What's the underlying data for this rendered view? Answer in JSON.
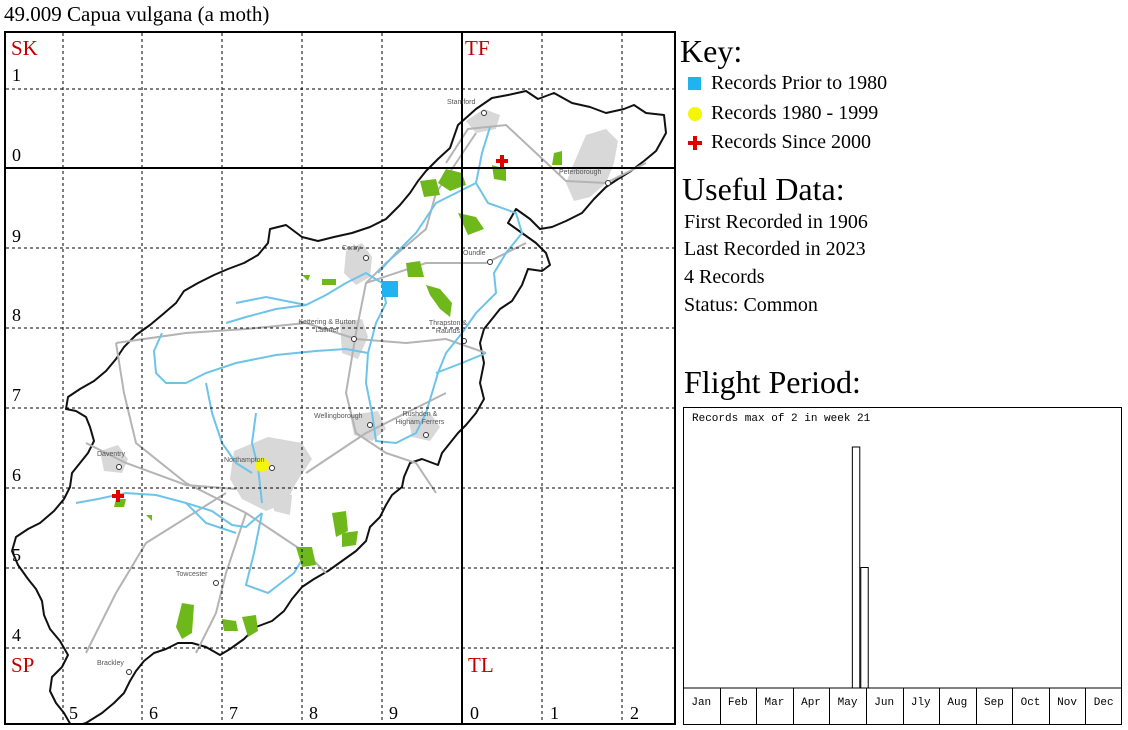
{
  "title": "49.009 Capua vulgana (a moth)",
  "map": {
    "grid_letters": {
      "top_left": "SK",
      "top_right": "TF",
      "bottom_left": "SP",
      "bottom_right": "TL"
    },
    "row_labels": [
      "1",
      "0",
      "9",
      "8",
      "7",
      "6",
      "5",
      "4"
    ],
    "column_labels": [
      "5",
      "6",
      "7",
      "8",
      "9",
      "0",
      "1",
      "2"
    ],
    "towns": [
      "Stamford",
      "Peterborough",
      "Corby",
      "Oundle",
      "Kettering & Burton Latimer",
      "Thrapston & Raunds",
      "Wellingborough",
      "Rushden & Higham Ferrers",
      "Daventry",
      "Northampton",
      "Towcester",
      "Brackley"
    ],
    "records": [
      {
        "type": "prior_1980",
        "color": "#1fb4f0"
      },
      {
        "type": "1980_1999",
        "color": "#f5f50a"
      },
      {
        "type": "since_2000",
        "color": "#e00000"
      },
      {
        "type": "since_2000",
        "color": "#e00000"
      }
    ]
  },
  "key": {
    "heading": "Key:",
    "items": [
      {
        "label": "Records Prior to 1980",
        "symbol": "square",
        "color": "#1fb4f0"
      },
      {
        "label": "Records 1980 - 1999",
        "symbol": "circle",
        "color": "#f5f50a"
      },
      {
        "label": "Records Since 2000",
        "symbol": "cross",
        "color": "#e00000"
      }
    ]
  },
  "useful_data": {
    "heading": "Useful Data:",
    "first_recorded": "First Recorded in 1906",
    "last_recorded": "Last Recorded in 2023",
    "records": "4 Records",
    "status": "Status: Common"
  },
  "flight_period": {
    "heading": "Flight Period:",
    "note": "Records max of 2 in week 21"
  },
  "chart_data": {
    "type": "bar",
    "x": [
      21,
      22
    ],
    "values": [
      2,
      1
    ],
    "categories": [
      "Jan",
      "Feb",
      "Mar",
      "Apr",
      "May",
      "Jun",
      "Jly",
      "Aug",
      "Sep",
      "Oct",
      "Nov",
      "Dec"
    ],
    "ylim": [
      0,
      2
    ]
  }
}
